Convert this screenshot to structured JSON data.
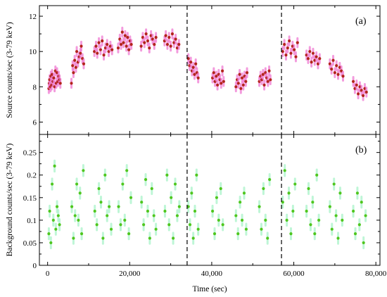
{
  "chart_data": [
    {
      "type": "scatter",
      "panel_label": "(a)",
      "ylabel": "Source counts/sec (3-79 keV)",
      "xlabel": "",
      "xlim": [
        -2000,
        81000
      ],
      "ylim": [
        5.3,
        12.6
      ],
      "yticks": [
        6,
        8,
        10,
        12
      ],
      "ytick_labels": [
        "6",
        "8",
        "10",
        "12"
      ],
      "xticks": [
        0,
        20000,
        40000,
        60000,
        80000
      ],
      "xtick_labels": [
        "",
        "",
        "",
        "",
        ""
      ],
      "vlines": [
        34000,
        57000
      ],
      "point_color": "#b3241c",
      "error_color": "#f07ad2",
      "error_half_width": 0.25,
      "series": [
        {
          "x": [
            300,
            400,
            500,
            700,
            800,
            1000,
            1100,
            1300,
            1500,
            1700,
            1900,
            2100,
            2300,
            2500,
            2700,
            2900,
            3100,
            5800,
            6100,
            6300,
            6600,
            6900,
            7100,
            7400,
            7700,
            8000,
            8200,
            8500,
            8800,
            11400,
            11800,
            12100,
            12500,
            12900,
            13300,
            13700,
            14100,
            14500,
            14900,
            15300,
            15700,
            17200,
            17600,
            17900,
            18200,
            18500,
            18900,
            19200,
            19500,
            19800,
            20100,
            20400,
            22800,
            23200,
            23600,
            24000,
            24400,
            24800,
            25200,
            25600,
            26000,
            26400,
            28500,
            28800,
            29200,
            29600,
            30000,
            30400,
            30800,
            31200,
            31600,
            32000,
            34300,
            34600,
            34900,
            35200,
            35500,
            35800,
            36100,
            36400,
            36700,
            40200,
            40500,
            40800,
            41100,
            41400,
            41700,
            42000,
            42300,
            42600,
            42900,
            45900,
            46200,
            46500,
            46800,
            47100,
            47400,
            47700,
            48000,
            48300,
            48600,
            51600,
            51900,
            52200,
            52500,
            52800,
            53100,
            53400,
            53700,
            54000,
            54300,
            57300,
            57700,
            58100,
            58500,
            58900,
            59300,
            59700,
            60100,
            60500,
            60900,
            63100,
            63500,
            63900,
            64300,
            64700,
            65100,
            65500,
            65900,
            66300,
            68800,
            69200,
            69600,
            70000,
            70400,
            70800,
            71200,
            71600,
            72000,
            74500,
            74900,
            75300,
            75700,
            76100,
            76500,
            76900,
            77300,
            77700
          ],
          "y": [
            7.9,
            8.2,
            8.4,
            8.0,
            8.6,
            8.1,
            8.7,
            8.3,
            8.5,
            8.0,
            8.9,
            8.2,
            8.8,
            8.3,
            8.6,
            8.4,
            8.2,
            8.2,
            9.2,
            8.8,
            9.5,
            9.1,
            10.0,
            9.4,
            9.7,
            9.9,
            10.3,
            9.6,
            9.3,
            10.0,
            10.3,
            9.9,
            10.5,
            10.1,
            10.6,
            9.8,
            10.2,
            10.4,
            10.0,
            10.3,
            10.1,
            10.2,
            10.7,
            10.4,
            11.1,
            10.5,
            10.9,
            10.3,
            10.8,
            10.1,
            10.6,
            10.4,
            10.3,
            10.8,
            10.5,
            11.0,
            10.6,
            10.2,
            10.9,
            10.7,
            10.4,
            10.8,
            10.6,
            10.9,
            10.4,
            10.8,
            10.3,
            11.0,
            10.5,
            10.7,
            10.2,
            10.4,
            9.6,
            9.2,
            9.4,
            8.9,
            9.1,
            8.7,
            9.3,
            8.8,
            8.5,
            8.5,
            8.8,
            8.3,
            8.6,
            8.1,
            8.7,
            8.4,
            8.2,
            8.9,
            8.3,
            8.0,
            8.4,
            8.2,
            8.7,
            7.9,
            8.5,
            8.1,
            8.6,
            8.3,
            8.8,
            8.3,
            8.6,
            8.4,
            8.7,
            8.1,
            8.8,
            8.5,
            8.3,
            8.9,
            8.4,
            10.0,
            10.4,
            9.8,
            10.2,
            10.6,
            9.9,
            10.3,
            10.1,
            9.7,
            10.5,
            9.8,
            9.6,
            10.0,
            9.4,
            9.9,
            9.5,
            9.7,
            9.3,
            9.6,
            9.3,
            9.0,
            9.5,
            8.8,
            9.2,
            8.7,
            9.1,
            8.9,
            8.6,
            8.3,
            7.9,
            8.1,
            7.6,
            8.0,
            7.8,
            7.5,
            7.9,
            7.7
          ]
        }
      ]
    },
    {
      "type": "scatter",
      "panel_label": "(b)",
      "ylabel": "Background counts/sec (3-79 keV)",
      "xlabel": "Time (sec)",
      "xlim": [
        -2000,
        81000
      ],
      "ylim": [
        0,
        0.29
      ],
      "yticks": [
        0,
        0.05,
        0.1,
        0.15,
        0.2,
        0.25
      ],
      "ytick_labels": [
        "0",
        "0.05",
        "0.1",
        "0.15",
        "0.2",
        "0.25"
      ],
      "xticks": [
        0,
        20000,
        40000,
        60000,
        80000
      ],
      "xtick_labels": [
        "0",
        "20,000",
        "40,000",
        "60,000",
        "80,000"
      ],
      "vlines": [
        34000,
        57000
      ],
      "point_color": "#4fc61e",
      "error_color": "#a9f3c9",
      "error_half_width": 0.012,
      "series": [
        {
          "x": [
            300,
            500,
            800,
            1100,
            1400,
            1700,
            2000,
            2300,
            2600,
            2900,
            5900,
            6300,
            6700,
            7100,
            7500,
            7900,
            8300,
            8700,
            11500,
            12000,
            12500,
            13000,
            13500,
            14000,
            14500,
            15000,
            15500,
            17300,
            17800,
            18300,
            18800,
            19300,
            19800,
            20300,
            22900,
            23400,
            23900,
            24400,
            24900,
            25400,
            25900,
            26400,
            28600,
            29100,
            29600,
            30100,
            30600,
            31100,
            31600,
            32100,
            34300,
            34700,
            35100,
            35500,
            35900,
            36300,
            36700,
            40200,
            40700,
            41200,
            41700,
            42200,
            42700,
            45900,
            46400,
            46900,
            47400,
            47900,
            48400,
            51600,
            52100,
            52600,
            53100,
            53600,
            54100,
            57300,
            57800,
            58300,
            58800,
            59300,
            59800,
            60300,
            63100,
            63600,
            64100,
            64600,
            65100,
            65600,
            66100,
            68800,
            69300,
            69800,
            70300,
            70800,
            71300,
            71800,
            74500,
            75000,
            75500,
            76000,
            76500,
            77000,
            77500
          ],
          "y": [
            0.07,
            0.12,
            0.05,
            0.18,
            0.1,
            0.22,
            0.08,
            0.13,
            0.11,
            0.09,
            0.13,
            0.06,
            0.11,
            0.18,
            0.1,
            0.16,
            0.07,
            0.21,
            0.12,
            0.09,
            0.17,
            0.14,
            0.06,
            0.2,
            0.11,
            0.13,
            0.08,
            0.13,
            0.09,
            0.18,
            0.1,
            0.21,
            0.07,
            0.15,
            0.14,
            0.09,
            0.19,
            0.12,
            0.06,
            0.17,
            0.11,
            0.08,
            0.12,
            0.2,
            0.09,
            0.15,
            0.06,
            0.18,
            0.11,
            0.13,
            0.13,
            0.09,
            0.16,
            0.06,
            0.12,
            0.2,
            0.08,
            0.12,
            0.07,
            0.15,
            0.1,
            0.17,
            0.09,
            0.11,
            0.07,
            0.14,
            0.1,
            0.16,
            0.08,
            0.13,
            0.08,
            0.17,
            0.1,
            0.06,
            0.19,
            0.14,
            0.21,
            0.1,
            0.16,
            0.07,
            0.12,
            0.18,
            0.12,
            0.17,
            0.09,
            0.14,
            0.07,
            0.2,
            0.1,
            0.13,
            0.08,
            0.18,
            0.11,
            0.06,
            0.16,
            0.1,
            0.12,
            0.07,
            0.16,
            0.09,
            0.14,
            0.05,
            0.11
          ]
        }
      ]
    }
  ]
}
